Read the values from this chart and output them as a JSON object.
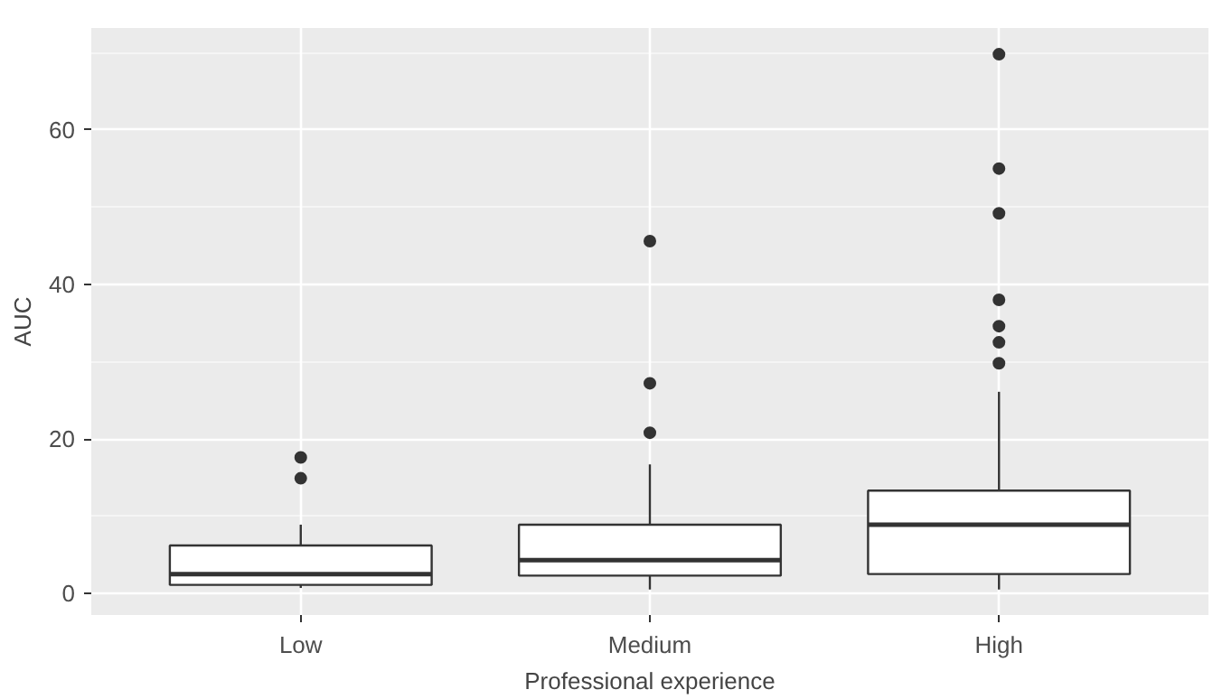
{
  "chart_data": {
    "type": "box",
    "xlabel": "Professional experience",
    "ylabel": "AUC",
    "categories": [
      "Low",
      "Medium",
      "High"
    ],
    "boxes": [
      {
        "low": 0.7,
        "q1": 1.1,
        "median": 2.5,
        "q3": 6.2,
        "high": 8.9,
        "outliers": [
          14.9,
          17.6
        ]
      },
      {
        "low": 0.5,
        "q1": 2.3,
        "median": 4.3,
        "q3": 8.9,
        "high": 16.7,
        "outliers": [
          20.8,
          27.2,
          45.6
        ]
      },
      {
        "low": 0.5,
        "q1": 2.5,
        "median": 8.9,
        "q3": 13.3,
        "high": 26.1,
        "outliers": [
          29.8,
          32.5,
          34.6,
          38.0,
          49.2,
          55.0,
          69.8
        ]
      }
    ],
    "ylim": [
      -2.8,
      73.2
    ],
    "yticks": [
      0,
      20,
      40,
      60
    ],
    "grid": true
  }
}
